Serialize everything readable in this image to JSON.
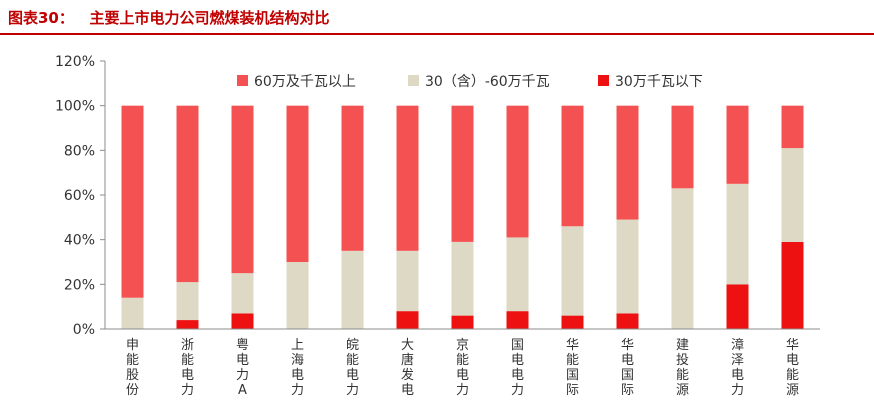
{
  "figure": {
    "title": "图表30：   主要上市电力公司燃煤装机结构对比"
  },
  "colors": {
    "title": "#c00000",
    "large": "#f45252",
    "mid": "#ddd9c4",
    "small": "#ee1111",
    "axis": "#8c8c8c"
  },
  "chart_data": {
    "type": "bar",
    "stacked": true,
    "title": "",
    "xlabel": "",
    "ylabel": "",
    "ylim": [
      0,
      120
    ],
    "yticks": [
      "0%",
      "20%",
      "40%",
      "60%",
      "80%",
      "100%",
      "120%"
    ],
    "grid": false,
    "legend_position": "top",
    "categories": [
      "申能股份",
      "浙能电力",
      "粤电力A",
      "上海电力",
      "皖能电力",
      "大唐发电",
      "京能电力",
      "国电电力",
      "华能国际",
      "华电国际",
      "建投能源",
      "漳泽电力",
      "华电能源"
    ],
    "series": [
      {
        "name": "30万千瓦以下",
        "key": "small",
        "values": [
          0,
          4,
          7,
          0,
          0,
          8,
          6,
          8,
          6,
          7,
          0,
          20,
          39
        ]
      },
      {
        "name": "30（含）-60万千瓦",
        "key": "mid",
        "values": [
          14,
          17,
          18,
          30,
          35,
          27,
          33,
          33,
          40,
          42,
          63,
          45,
          42
        ]
      },
      {
        "name": "60万及千瓦以上",
        "key": "large",
        "values": [
          86,
          79,
          75,
          70,
          65,
          65,
          61,
          59,
          54,
          51,
          37,
          35,
          19
        ]
      }
    ],
    "legend_order": [
      "large",
      "mid",
      "small"
    ]
  }
}
